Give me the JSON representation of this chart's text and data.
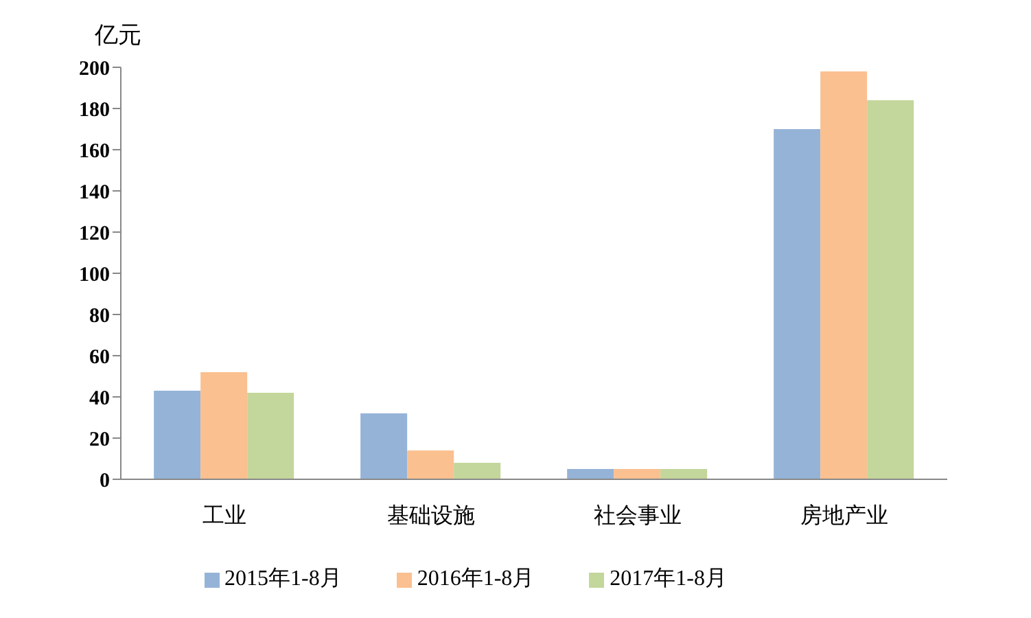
{
  "chart_data": {
    "type": "bar",
    "ylabel": "亿元",
    "categories": [
      "工业",
      "基础设施",
      "社会事业",
      "房地产业"
    ],
    "series": [
      {
        "name": "2015年1-8月",
        "color": "#95b3d7",
        "values": [
          43,
          32,
          5,
          170
        ]
      },
      {
        "name": "2016年1-8月",
        "color": "#fac090",
        "values": [
          52,
          14,
          5,
          198
        ]
      },
      {
        "name": "2017年1-8月",
        "color": "#c3d69b",
        "values": [
          42,
          8,
          5,
          184
        ]
      }
    ],
    "ylim": [
      0,
      200
    ],
    "yticks": [
      0,
      20,
      40,
      60,
      80,
      100,
      120,
      140,
      160,
      180,
      200
    ],
    "legend": "bottom"
  }
}
